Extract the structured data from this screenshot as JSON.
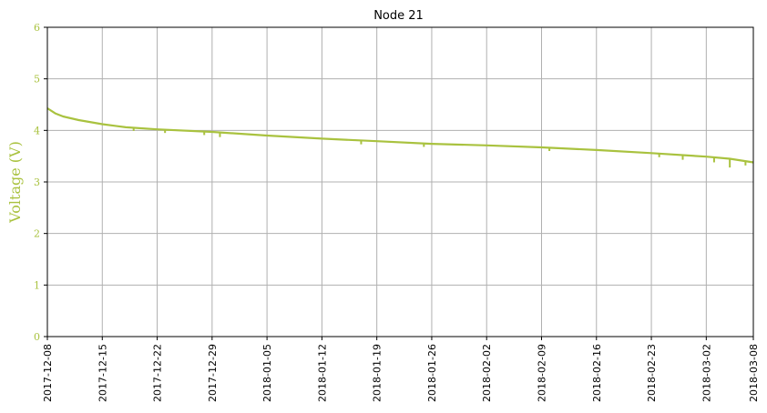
{
  "chart_data": {
    "type": "line",
    "title": "Node 21",
    "xlabel": "",
    "ylabel": "Voltage (V)",
    "ylim": [
      0,
      6
    ],
    "xlim": [
      "2017-12-08",
      "2018-03-08"
    ],
    "yticks": [
      "0",
      "1",
      "2",
      "3",
      "4",
      "5",
      "6"
    ],
    "xticks": [
      "2017-12-08",
      "2017-12-15",
      "2017-12-22",
      "2017-12-29",
      "2018-01-05",
      "2018-01-12",
      "2018-01-19",
      "2018-01-26",
      "2018-02-02",
      "2018-02-09",
      "2018-02-16",
      "2018-02-23",
      "2018-03-02",
      "2018-03-08"
    ],
    "grid": true,
    "color": "#a9c23f",
    "series": [
      {
        "x": [
          "2017-12-08",
          "2017-12-09",
          "2017-12-10",
          "2017-12-12",
          "2017-12-15",
          "2017-12-18",
          "2017-12-22",
          "2017-12-29",
          "2018-01-05",
          "2018-01-12",
          "2018-01-19",
          "2018-01-26",
          "2018-02-02",
          "2018-02-09",
          "2018-02-16",
          "2018-02-23",
          "2018-03-02",
          "2018-03-05",
          "2018-03-08"
        ],
        "values": [
          4.43,
          4.33,
          4.27,
          4.2,
          4.12,
          4.06,
          4.02,
          3.97,
          3.9,
          3.84,
          3.79,
          3.74,
          3.71,
          3.67,
          3.62,
          3.56,
          3.49,
          3.45,
          3.38
        ]
      }
    ],
    "dips": [
      {
        "x": "2017-12-19",
        "value": 3.99
      },
      {
        "x": "2017-12-23",
        "value": 3.95
      },
      {
        "x": "2017-12-28",
        "value": 3.91
      },
      {
        "x": "2017-12-30",
        "value": 3.87
      },
      {
        "x": "2018-01-17",
        "value": 3.73
      },
      {
        "x": "2018-01-25",
        "value": 3.68
      },
      {
        "x": "2018-02-10",
        "value": 3.6
      },
      {
        "x": "2018-02-24",
        "value": 3.48
      },
      {
        "x": "2018-02-27",
        "value": 3.43
      },
      {
        "x": "2018-03-03",
        "value": 3.38
      },
      {
        "x": "2018-03-05",
        "value": 3.28
      },
      {
        "x": "2018-03-07",
        "value": 3.32
      }
    ]
  }
}
